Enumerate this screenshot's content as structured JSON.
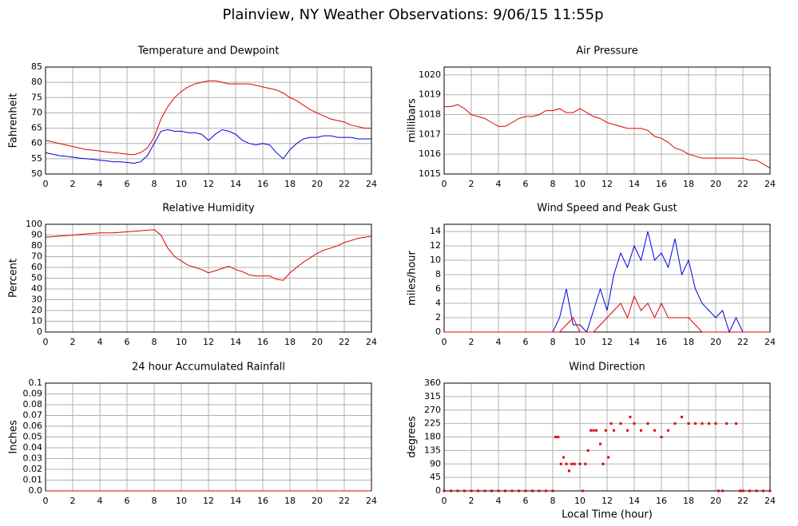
{
  "title": "Plainview, NY Weather Observations: 9/06/15 11:55p",
  "xlabel": "Local Time (hour)",
  "chart_data": [
    {
      "type": "line",
      "title": "Temperature and Dewpoint",
      "ylabel": "Fahrenheit",
      "x": [
        0,
        0.5,
        1,
        1.5,
        2,
        2.5,
        3,
        3.5,
        4,
        4.5,
        5,
        5.5,
        6,
        6.5,
        7,
        7.5,
        8,
        8.5,
        9,
        9.5,
        10,
        10.5,
        11,
        11.5,
        12,
        12.5,
        13,
        13.5,
        14,
        14.5,
        15,
        15.5,
        16,
        16.5,
        17,
        17.5,
        18,
        18.5,
        19,
        19.5,
        20,
        20.5,
        21,
        21.5,
        22,
        22.5,
        23,
        23.5,
        24
      ],
      "series": [
        {
          "color": "#e00000",
          "values": [
            61,
            60.5,
            60,
            59.5,
            59,
            58.5,
            58,
            57.8,
            57.5,
            57.2,
            57,
            56.8,
            56.5,
            56.3,
            57,
            58.5,
            62,
            68,
            72,
            75,
            77,
            78.5,
            79.5,
            80,
            80.5,
            80.5,
            80,
            79.5,
            79.5,
            79.5,
            79.5,
            79,
            78.5,
            78,
            77.5,
            76.5,
            75,
            74,
            72.5,
            71,
            70,
            69,
            68,
            67.5,
            67,
            66,
            65.5,
            65,
            65
          ]
        },
        {
          "color": "#0000e0",
          "values": [
            57,
            56.5,
            56,
            55.8,
            55.5,
            55.2,
            55,
            54.8,
            54.5,
            54.3,
            54,
            54,
            53.8,
            53.5,
            54,
            56,
            60,
            64,
            64.5,
            64,
            64,
            63.5,
            63.5,
            63,
            61,
            63,
            64.5,
            64,
            63,
            61,
            60,
            59.5,
            60,
            59.5,
            57,
            55,
            58,
            60,
            61.5,
            62,
            62,
            62.5,
            62.5,
            62,
            62,
            62,
            61.5,
            61.5,
            61.5
          ]
        }
      ],
      "xlim": [
        0,
        24
      ],
      "xticks": [
        0,
        2,
        4,
        6,
        8,
        10,
        12,
        14,
        16,
        18,
        20,
        22,
        24
      ],
      "ylim": [
        50,
        85
      ],
      "yticks": [
        50,
        55,
        60,
        65,
        70,
        75,
        80,
        85
      ],
      "grid": true
    },
    {
      "type": "line",
      "title": "Air Pressure",
      "ylabel": "millibars",
      "x": [
        0,
        0.5,
        1,
        1.5,
        2,
        2.5,
        3,
        3.5,
        4,
        4.5,
        5,
        5.5,
        6,
        6.5,
        7,
        7.5,
        8,
        8.5,
        9,
        9.5,
        10,
        10.5,
        11,
        11.5,
        12,
        12.5,
        13,
        13.5,
        14,
        14.5,
        15,
        15.5,
        16,
        16.5,
        17,
        17.5,
        18,
        18.5,
        19,
        19.5,
        20,
        20.5,
        21,
        21.5,
        22,
        22.5,
        23,
        23.5,
        24
      ],
      "series": [
        {
          "color": "#e00000",
          "values": [
            1018.4,
            1018.4,
            1018.5,
            1018.3,
            1018.0,
            1017.9,
            1017.8,
            1017.6,
            1017.4,
            1017.4,
            1017.6,
            1017.8,
            1017.9,
            1017.9,
            1018.0,
            1018.2,
            1018.2,
            1018.3,
            1018.1,
            1018.1,
            1018.3,
            1018.1,
            1017.9,
            1017.8,
            1017.6,
            1017.5,
            1017.4,
            1017.3,
            1017.3,
            1017.3,
            1017.2,
            1016.9,
            1016.8,
            1016.6,
            1016.3,
            1016.2,
            1016.0,
            1015.9,
            1015.8,
            1015.8,
            1015.8,
            1015.8,
            1015.8,
            1015.8,
            1015.8,
            1015.7,
            1015.7,
            1015.5,
            1015.3
          ]
        }
      ],
      "xlim": [
        0,
        24
      ],
      "xticks": [
        0,
        2,
        4,
        6,
        8,
        10,
        12,
        14,
        16,
        18,
        20,
        22,
        24
      ],
      "ylim": [
        1015,
        1020.4
      ],
      "yticks": [
        1015,
        1016,
        1017,
        1018,
        1019,
        1020
      ],
      "grid": true
    },
    {
      "type": "line",
      "title": "Relative Humidity",
      "ylabel": "Percent",
      "x": [
        0,
        0.5,
        1,
        1.5,
        2,
        2.5,
        3,
        3.5,
        4,
        4.5,
        5,
        5.5,
        6,
        6.5,
        7,
        7.5,
        8,
        8.5,
        9,
        9.5,
        10,
        10.5,
        11,
        11.5,
        12,
        12.5,
        13,
        13.5,
        14,
        14.5,
        15,
        15.5,
        16,
        16.5,
        17,
        17.5,
        18,
        18.5,
        19,
        19.5,
        20,
        20.5,
        21,
        21.5,
        22,
        22.5,
        23,
        23.5,
        24
      ],
      "series": [
        {
          "color": "#e00000",
          "values": [
            88,
            88.5,
            89,
            89.5,
            90,
            90.5,
            91,
            91.5,
            92,
            92,
            92,
            92.5,
            93,
            93.5,
            94,
            94.5,
            95,
            90,
            78,
            70,
            66,
            62,
            60,
            58,
            55,
            57,
            59,
            61,
            58,
            56,
            53,
            52,
            52,
            52,
            49,
            48,
            55,
            60,
            65,
            69,
            73,
            76,
            78,
            80,
            83,
            85,
            87,
            88,
            89
          ]
        }
      ],
      "xlim": [
        0,
        24
      ],
      "xticks": [
        0,
        2,
        4,
        6,
        8,
        10,
        12,
        14,
        16,
        18,
        20,
        22,
        24
      ],
      "ylim": [
        0,
        100
      ],
      "yticks": [
        0,
        10,
        20,
        30,
        40,
        50,
        60,
        70,
        80,
        90,
        100
      ],
      "grid": true
    },
    {
      "type": "line",
      "title": "Wind Speed and Peak Gust",
      "ylabel": "miles/hour",
      "x": [
        0,
        0.5,
        1,
        1.5,
        2,
        2.5,
        3,
        3.5,
        4,
        4.5,
        5,
        5.5,
        6,
        6.5,
        7,
        7.5,
        8,
        8.5,
        9,
        9.5,
        10,
        10.5,
        11,
        11.5,
        12,
        12.5,
        13,
        13.5,
        14,
        14.5,
        15,
        15.5,
        16,
        16.5,
        17,
        17.5,
        18,
        18.5,
        19,
        19.5,
        20,
        20.5,
        21,
        21.5,
        22,
        22.5,
        23,
        23.5,
        24
      ],
      "series": [
        {
          "color": "#0000e0",
          "values": [
            0,
            0,
            0,
            0,
            0,
            0,
            0,
            0,
            0,
            0,
            0,
            0,
            0,
            0,
            0,
            0,
            0,
            2,
            6,
            1,
            1,
            0,
            3,
            6,
            3,
            8,
            11,
            9,
            12,
            10,
            14,
            10,
            11,
            9,
            13,
            8,
            10,
            6,
            4,
            3,
            2,
            3,
            0,
            2,
            0,
            0,
            0,
            0,
            0
          ]
        },
        {
          "color": "#e00000",
          "values": [
            0,
            0,
            0,
            0,
            0,
            0,
            0,
            0,
            0,
            0,
            0,
            0,
            0,
            0,
            0,
            0,
            0,
            0,
            1,
            2,
            0,
            0,
            0,
            1,
            2,
            3,
            4,
            2,
            5,
            3,
            4,
            2,
            4,
            2,
            2,
            2,
            2,
            1,
            0,
            0,
            0,
            0,
            0,
            0,
            0,
            0,
            0,
            0,
            0
          ]
        }
      ],
      "xlim": [
        0,
        24
      ],
      "xticks": [
        0,
        2,
        4,
        6,
        8,
        10,
        12,
        14,
        16,
        18,
        20,
        22,
        24
      ],
      "ylim": [
        0,
        15
      ],
      "yticks": [
        0,
        2,
        4,
        6,
        8,
        10,
        12,
        14
      ],
      "grid": true
    },
    {
      "type": "line",
      "title": "24 hour Accumulated Rainfall",
      "ylabel": "Inches",
      "x": [
        0,
        24
      ],
      "series": [
        {
          "color": "#e00000",
          "values": [
            0,
            0
          ]
        }
      ],
      "xlim": [
        0,
        24
      ],
      "xticks": [
        0,
        2,
        4,
        6,
        8,
        10,
        12,
        14,
        16,
        18,
        20,
        22,
        24
      ],
      "ylim": [
        0,
        0.1
      ],
      "yticks": [
        {
          "value": 0,
          "label": "0.0"
        },
        0.01,
        0.02,
        0.03,
        0.04,
        0.05,
        0.06,
        0.07,
        0.08,
        0.09,
        0.1
      ],
      "grid": true
    },
    {
      "type": "scatter",
      "title": "Wind Direction",
      "ylabel": "degrees",
      "color": "#e00000",
      "x": [
        0,
        0.5,
        1,
        1.5,
        2,
        2.5,
        3,
        3.5,
        4,
        4.5,
        5,
        5.5,
        6,
        6.5,
        7,
        7.5,
        8,
        8.2,
        8.4,
        8.6,
        8.8,
        9,
        9.2,
        9.4,
        9.6,
        10,
        10.2,
        10.4,
        10.6,
        10.8,
        11,
        11.2,
        11.5,
        11.7,
        11.9,
        12.1,
        12.3,
        12.5,
        13,
        13.5,
        13.7,
        14,
        14.5,
        15,
        15.5,
        16,
        16.5,
        17,
        17.5,
        18,
        18.5,
        19,
        19.5,
        20,
        20.2,
        20.5,
        20.8,
        21.5,
        21.8,
        22,
        22.5,
        23,
        23.5,
        24
      ],
      "values": [
        0,
        0,
        0,
        0,
        0,
        0,
        0,
        0,
        0,
        0,
        0,
        0,
        0,
        0,
        0,
        0,
        0,
        180,
        180,
        90,
        112,
        90,
        67,
        90,
        90,
        90,
        0,
        90,
        135,
        202,
        202,
        202,
        157,
        90,
        202,
        112,
        225,
        202,
        225,
        202,
        247,
        225,
        202,
        225,
        202,
        180,
        202,
        225,
        247,
        225,
        225,
        225,
        225,
        225,
        0,
        0,
        225,
        225,
        0,
        0,
        0,
        0,
        0,
        0
      ],
      "xlim": [
        0,
        24
      ],
      "xticks": [
        0,
        2,
        4,
        6,
        8,
        10,
        12,
        14,
        16,
        18,
        20,
        22,
        24
      ],
      "ylim": [
        0,
        360
      ],
      "yticks": [
        0,
        45,
        90,
        135,
        180,
        225,
        270,
        315,
        360
      ],
      "grid": true
    }
  ]
}
